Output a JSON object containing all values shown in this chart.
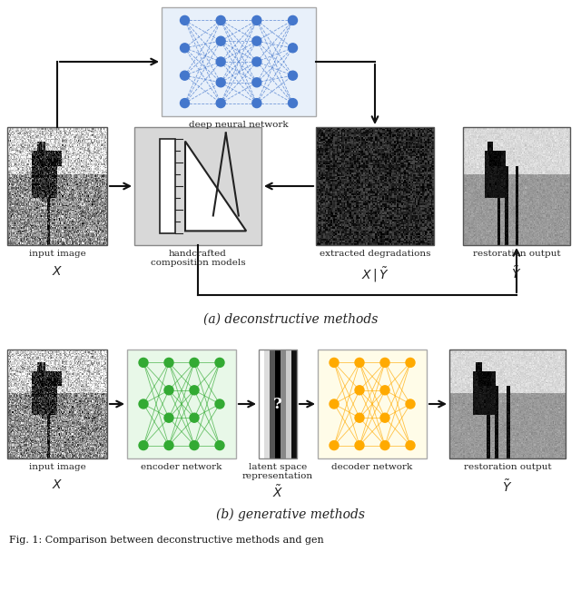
{
  "fig_width": 6.4,
  "fig_height": 6.51,
  "dpi": 100,
  "bg_color": "#ffffff",
  "panel_a_title": "(a) deconstructive methods",
  "panel_b_title": "(b) generative methods",
  "caption": "Fig. 1: Comparison between deconstructive methods and gen",
  "arrow_color": "#111111",
  "dnn_bg": "#e8f0fa",
  "hcm_bg": "#d8d8d8",
  "enc_bg": "#e8f8e8",
  "dec_bg": "#fffce8",
  "node_blue": "#4477cc",
  "node_green": "#33aa33",
  "node_yellow": "#ffaa00",
  "label_fs": 7.5,
  "title_fs": 10,
  "math_fs": 10,
  "caption_fs": 8
}
